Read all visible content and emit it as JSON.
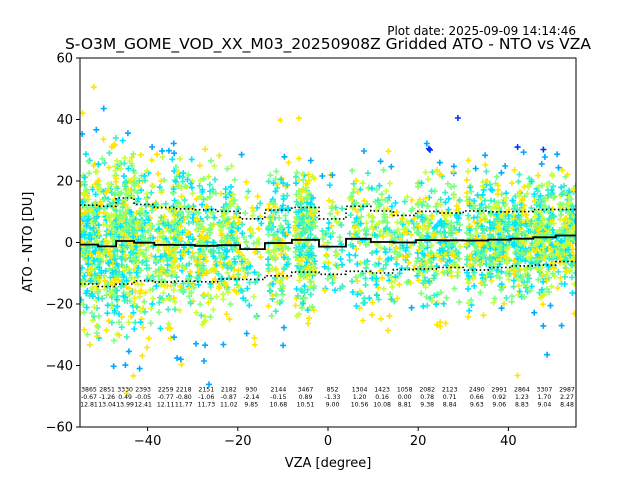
{
  "chart_data": {
    "type": "scatter",
    "title": "S-O3M_GOME_VOD_XX_M03_20250908Z Gridded ATO - NTO vs VZA",
    "plot_date": "Plot date: 2025-09-09 14:14:46",
    "xlabel": "VZA [degree]",
    "ylabel": "ATO - NTO [DU]",
    "xlim": [
      -55,
      55
    ],
    "ylim": [
      -60,
      60
    ],
    "x_ticks": [
      -40,
      -20,
      0,
      20,
      40
    ],
    "y_ticks": [
      -60,
      -40,
      -20,
      0,
      20,
      40,
      60
    ],
    "x_tick_labels": [
      "−40",
      "−20",
      "0",
      "20",
      "40"
    ],
    "y_tick_labels": [
      "−60",
      "−40",
      "−20",
      "0",
      "20",
      "40",
      "60"
    ],
    "marker": "plus",
    "colors": [
      "#00e5ff",
      "#7fff7f",
      "#3cf0c0",
      "#c8ff3c",
      "#ffe600",
      "#00a8ff",
      "#0033ff"
    ],
    "bins": [
      {
        "x": -53,
        "count": "3865",
        "mean": "-0.67",
        "std": "12.81"
      },
      {
        "x": -49,
        "count": "2851",
        "mean": "-1.26",
        "std": "13.04"
      },
      {
        "x": -45,
        "count": "3330",
        "mean": "0.49",
        "std": "13.99"
      },
      {
        "x": -41,
        "count": "2393",
        "mean": "-0.05",
        "std": "12.41"
      },
      {
        "x": -36,
        "count": "2259",
        "mean": "-0.77",
        "std": "12.11"
      },
      {
        "x": -32,
        "count": "2218",
        "mean": "-0.80",
        "std": "11.77"
      },
      {
        "x": -27,
        "count": "2151",
        "mean": "-1.06",
        "std": "11.73"
      },
      {
        "x": -22,
        "count": "2182",
        "mean": "-0.87",
        "std": "11.02"
      },
      {
        "x": -17,
        "count": "930",
        "mean": "-2.14",
        "std": "9.85"
      },
      {
        "x": -11,
        "count": "2144",
        "mean": "-0.15",
        "std": "10.68"
      },
      {
        "x": -5,
        "count": "3467",
        "mean": "0.89",
        "std": "10.51"
      },
      {
        "x": 1,
        "count": "852",
        "mean": "-1.33",
        "std": "9.00"
      },
      {
        "x": 7,
        "count": "1304",
        "mean": "1.20",
        "std": "10.56"
      },
      {
        "x": 12,
        "count": "1423",
        "mean": "0.16",
        "std": "10.08"
      },
      {
        "x": 17,
        "count": "1058",
        "mean": "0.00",
        "std": "8.81"
      },
      {
        "x": 22,
        "count": "2082",
        "mean": "0.78",
        "std": "9.38"
      },
      {
        "x": 27,
        "count": "2123",
        "mean": "0.71",
        "std": "8.84"
      },
      {
        "x": 33,
        "count": "2490",
        "mean": "0.66",
        "std": "9.63"
      },
      {
        "x": 38,
        "count": "2991",
        "mean": "0.92",
        "std": "9.06"
      },
      {
        "x": 43,
        "count": "2864",
        "mean": "1.23",
        "std": "8.83"
      },
      {
        "x": 48,
        "count": "3307",
        "mean": "1.70",
        "std": "9.04"
      },
      {
        "x": 53,
        "count": "2987",
        "mean": "2.27",
        "std": "8.48"
      }
    ]
  }
}
